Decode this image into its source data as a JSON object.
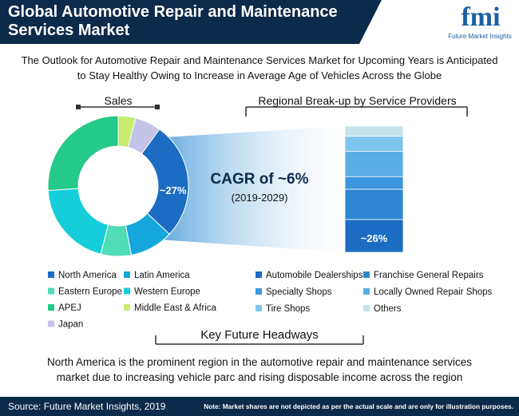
{
  "header": {
    "title": "Global Automotive Repair and Maintenance Services Market",
    "logo": "fmi",
    "logo_caption": "Future Market Insights"
  },
  "subtitle": "The Outlook for Automotive Repair and Maintenance Services Market for Upcoming Years is Anticipated to Stay Healthy Owing to Increase in Average Age of Vehicles Across the Globe",
  "callout": {
    "text": "CAGR of ~6%",
    "period": "(2019-2029)"
  },
  "chart_data": [
    {
      "type": "pie",
      "title": "Sales",
      "donut": true,
      "categories": [
        "North America",
        "Latin America",
        "Eastern Europe",
        "Western Europe",
        "APEJ",
        "Middle East & Africa",
        "Japan"
      ],
      "values": [
        27,
        10,
        7,
        20,
        26,
        4,
        6
      ],
      "value_labels": [
        "~27%",
        null,
        null,
        null,
        null,
        null,
        null
      ],
      "colors": [
        "#1b6cc2",
        "#14a6dc",
        "#4fdcb6",
        "#15ced9",
        "#25c98a",
        "#c8ec70",
        "#c4c4e8"
      ]
    },
    {
      "type": "bar",
      "title": "Regional Break-up by Service Providers",
      "stacked": true,
      "series": [
        {
          "name": "Automobile Dealerships",
          "color": "#1b6cc2",
          "values": [
            26
          ],
          "value_labels": [
            "~26%"
          ]
        },
        {
          "name": "Franchise General Repairs",
          "color": "#2f86d2",
          "values": [
            24
          ]
        },
        {
          "name": "Specialty Shops",
          "color": "#3d96de",
          "values": [
            10
          ]
        },
        {
          "name": "Locally Owned Repair Shops",
          "color": "#5aaee6",
          "values": [
            20
          ]
        },
        {
          "name": "Tire Shops",
          "color": "#7ec5ef",
          "values": [
            12
          ]
        },
        {
          "name": "Others",
          "color": "#c3e3ea",
          "values": [
            8
          ]
        }
      ]
    }
  ],
  "headways": {
    "title": "Key Future Headways",
    "text": "North America is the prominent region in the automotive repair and maintenance services market due to increasing vehicle parc and rising disposable income across the region"
  },
  "footer": {
    "source": "Source: Future Market Insights, 2019",
    "note": "Note: Market shares are not depicted as per the actual scale and are only for illustration purposes."
  }
}
